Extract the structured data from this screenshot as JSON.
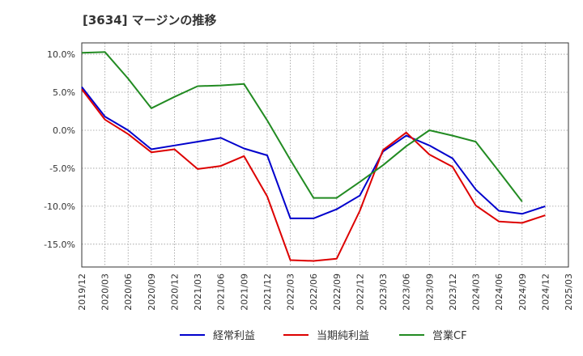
{
  "chart_data": {
    "type": "line",
    "title": "[3634]  マージンの推移",
    "xlabel": "",
    "ylabel": "",
    "x": [
      "2019/12",
      "2020/03",
      "2020/06",
      "2020/09",
      "2020/12",
      "2021/03",
      "2021/06",
      "2021/09",
      "2021/12",
      "2022/03",
      "2022/06",
      "2022/09",
      "2022/12",
      "2023/03",
      "2023/06",
      "2023/09",
      "2023/12",
      "2024/03",
      "2024/06",
      "2024/09",
      "2024/12",
      "2025/03"
    ],
    "ylim": [
      -18.0,
      11.5
    ],
    "yticks": [
      10.0,
      5.0,
      0.0,
      -5.0,
      -10.0,
      -15.0
    ],
    "ytick_labels": [
      "10.0%",
      "5.0%",
      "0.0%",
      "-5.0%",
      "-10.0%",
      "-15.0%"
    ],
    "grid": true,
    "legend_position": "bottom",
    "series": [
      {
        "name": "経常利益",
        "color": "#0000cc",
        "values": [
          5.7,
          1.8,
          0.0,
          -2.5,
          -2.0,
          -1.5,
          -1.0,
          -2.4,
          -3.3,
          -11.6,
          -11.6,
          -10.4,
          -8.6,
          -2.8,
          -0.7,
          -2.0,
          -3.7,
          -7.8,
          -10.6,
          -11.0,
          -10.0,
          null
        ]
      },
      {
        "name": "当期純利益",
        "color": "#dd0000",
        "values": [
          5.4,
          1.4,
          -0.5,
          -2.9,
          -2.5,
          -5.1,
          -4.7,
          -3.4,
          -8.7,
          -17.1,
          -17.2,
          -16.9,
          -10.6,
          -2.6,
          -0.3,
          -3.2,
          -4.8,
          -9.9,
          -12.0,
          -12.2,
          -11.2,
          null
        ]
      },
      {
        "name": "営業CF",
        "color": "#228b22",
        "values": [
          10.2,
          10.3,
          6.8,
          2.9,
          4.4,
          5.8,
          5.9,
          6.1,
          1.3,
          -3.9,
          -8.9,
          -8.9,
          -6.8,
          -4.6,
          -2.1,
          0.0,
          -0.7,
          -1.5,
          -5.4,
          -9.4,
          null,
          null
        ]
      }
    ]
  }
}
